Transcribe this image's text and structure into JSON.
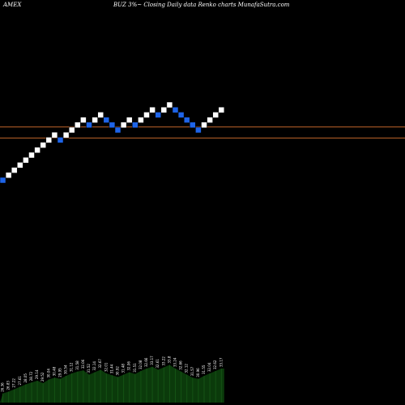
{
  "header": {
    "exchange": "AMEX",
    "title": "BUZ 3%~ Closing Daily data Renko charts MunafaSutra.com"
  },
  "chart_data": {
    "type": "renko",
    "title": "BUZ 3%~ Closing Daily data Renko charts MunafaSutra.com",
    "brick_colors": {
      "up": "#ffffff",
      "down": "#1e64e8"
    },
    "bricks": [
      {
        "dir": "down",
        "level": 0
      },
      {
        "dir": "up",
        "level": 1
      },
      {
        "dir": "up",
        "level": 2
      },
      {
        "dir": "up",
        "level": 3
      },
      {
        "dir": "up",
        "level": 4
      },
      {
        "dir": "up",
        "level": 5
      },
      {
        "dir": "up",
        "level": 6
      },
      {
        "dir": "up",
        "level": 7
      },
      {
        "dir": "up",
        "level": 8
      },
      {
        "dir": "up",
        "level": 9
      },
      {
        "dir": "down",
        "level": 8
      },
      {
        "dir": "up",
        "level": 9
      },
      {
        "dir": "up",
        "level": 10
      },
      {
        "dir": "up",
        "level": 11
      },
      {
        "dir": "up",
        "level": 12
      },
      {
        "dir": "down",
        "level": 11
      },
      {
        "dir": "up",
        "level": 12
      },
      {
        "dir": "up",
        "level": 13
      },
      {
        "dir": "down",
        "level": 12
      },
      {
        "dir": "down",
        "level": 11
      },
      {
        "dir": "down",
        "level": 10
      },
      {
        "dir": "up",
        "level": 11
      },
      {
        "dir": "up",
        "level": 12
      },
      {
        "dir": "down",
        "level": 11
      },
      {
        "dir": "up",
        "level": 12
      },
      {
        "dir": "up",
        "level": 13
      },
      {
        "dir": "up",
        "level": 14
      },
      {
        "dir": "down",
        "level": 13
      },
      {
        "dir": "up",
        "level": 14
      },
      {
        "dir": "up",
        "level": 15
      },
      {
        "dir": "down",
        "level": 14
      },
      {
        "dir": "down",
        "level": 13
      },
      {
        "dir": "down",
        "level": 12
      },
      {
        "dir": "down",
        "level": 11
      },
      {
        "dir": "down",
        "level": 10
      },
      {
        "dir": "up",
        "level": 11
      },
      {
        "dir": "up",
        "level": 12
      },
      {
        "dir": "up",
        "level": 13
      },
      {
        "dir": "up",
        "level": 14
      }
    ],
    "hlines": [
      {
        "level": 10.6,
        "color": "#c0642a"
      },
      {
        "level": 8.4,
        "color": "#c0642a"
      }
    ],
    "volume_labels": [
      "26.36",
      "26.83",
      "27.22",
      "27.61",
      "28.05",
      "28.72",
      "29.14",
      "29.52",
      "30.04",
      "30.48",
      "29.95",
      "30.54",
      "31.12",
      "31.58",
      "32.06",
      "31.52",
      "32.14",
      "32.67",
      "32.01",
      "31.44",
      "30.92",
      "31.48",
      "32.06",
      "31.51",
      "32.08",
      "32.66",
      "33.17",
      "32.61",
      "33.22",
      "33.8",
      "33.24",
      "32.66",
      "32.12",
      "31.57",
      "30.96",
      "31.55",
      "32.04",
      "32.62",
      "33.17"
    ],
    "volumes": [
      1.5,
      1.8,
      2.2,
      2.6,
      3.0,
      3.3,
      3.6,
      3.2,
      3.8,
      4.1,
      3.9,
      4.4,
      4.8,
      5.1,
      5.3,
      4.6,
      5.0,
      5.4,
      4.8,
      4.5,
      4.2,
      4.6,
      5.0,
      4.7,
      5.2,
      5.6,
      5.9,
      5.4,
      5.8,
      6.2,
      5.6,
      5.1,
      4.6,
      4.1,
      3.9,
      4.4,
      4.8,
      5.2,
      5.6
    ]
  }
}
